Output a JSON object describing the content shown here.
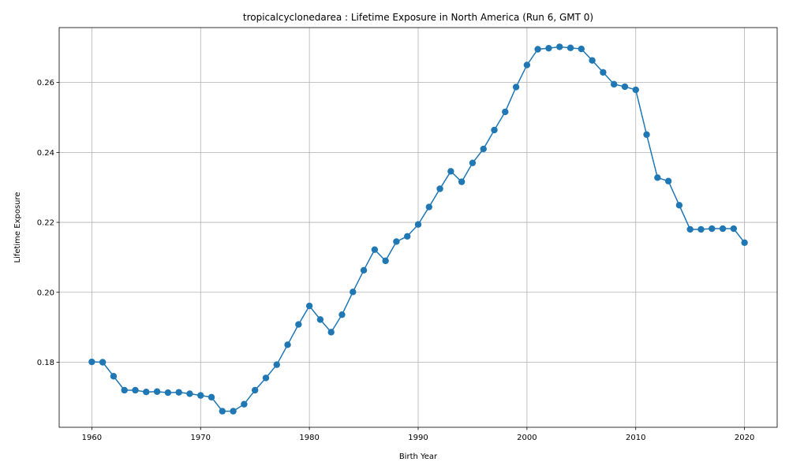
{
  "chart_data": {
    "type": "line",
    "title": "tropicalcyclonedarea : Lifetime Exposure in North America (Run 6, GMT 0)",
    "xlabel": "Birth Year",
    "ylabel": "Lifetime Exposure",
    "xlim": [
      1957,
      2023
    ],
    "ylim": [
      0.1614,
      0.2757
    ],
    "xticks": [
      1960,
      1970,
      1980,
      1990,
      2000,
      2010,
      2020
    ],
    "yticks": [
      0.18,
      0.2,
      0.22,
      0.24,
      0.26
    ],
    "ytick_labels": [
      "0.18",
      "0.20",
      "0.22",
      "0.24",
      "0.26"
    ],
    "grid": true,
    "color": "#1f77b4",
    "marker": "circle",
    "x": [
      1960,
      1961,
      1962,
      1963,
      1964,
      1965,
      1966,
      1967,
      1968,
      1969,
      1970,
      1971,
      1972,
      1973,
      1974,
      1975,
      1976,
      1977,
      1978,
      1979,
      1980,
      1981,
      1982,
      1983,
      1984,
      1985,
      1986,
      1987,
      1988,
      1989,
      1990,
      1991,
      1992,
      1993,
      1994,
      1995,
      1996,
      1997,
      1998,
      1999,
      2000,
      2001,
      2002,
      2003,
      2004,
      2005,
      2006,
      2007,
      2008,
      2009,
      2010,
      2011,
      2012,
      2013,
      2014,
      2015,
      2016,
      2017,
      2018,
      2019,
      2020
    ],
    "y": [
      0.1801,
      0.18,
      0.176,
      0.172,
      0.172,
      0.1715,
      0.1716,
      0.1713,
      0.1714,
      0.171,
      0.1705,
      0.17,
      0.166,
      0.166,
      0.168,
      0.172,
      0.1755,
      0.1793,
      0.185,
      0.1908,
      0.1961,
      0.1922,
      0.1886,
      0.1936,
      0.2001,
      0.2063,
      0.2122,
      0.209,
      0.2145,
      0.216,
      0.2194,
      0.2244,
      0.2296,
      0.2346,
      0.2316,
      0.237,
      0.241,
      0.2464,
      0.2516,
      0.2587,
      0.265,
      0.2695,
      0.2698,
      0.2702,
      0.2699,
      0.2696,
      0.2663,
      0.2629,
      0.2595,
      0.2588,
      0.2579,
      0.2451,
      0.2328,
      0.2318,
      0.2249,
      0.218,
      0.218,
      0.2182,
      0.2182,
      0.2182,
      0.2142
    ]
  }
}
